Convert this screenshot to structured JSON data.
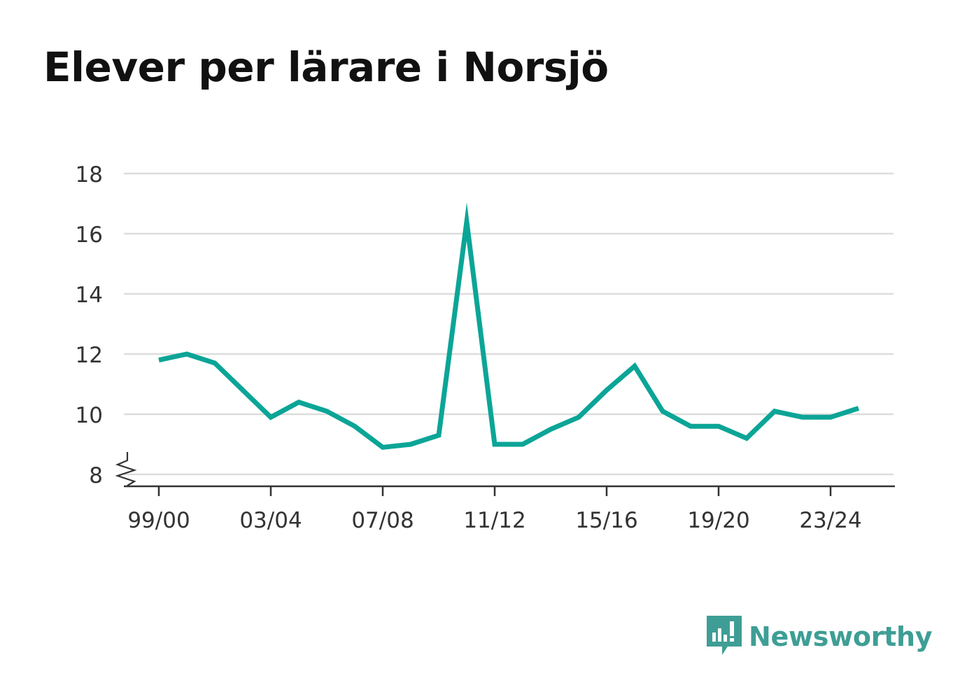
{
  "title": "Elever per lärare i Norsjö",
  "brand": {
    "name": "Newsworthy",
    "color": "#3e9e95",
    "icon": "bar-chart-speech-bubble-icon"
  },
  "colors": {
    "line": "#0ba597",
    "grid": "#dddddd",
    "axis": "#333333",
    "text": "#333333"
  },
  "chart_data": {
    "type": "line",
    "title": "Elever per lärare i Norsjö",
    "xlabel": "",
    "ylabel": "",
    "ylim": [
      8,
      18
    ],
    "yticks": [
      8,
      10,
      12,
      14,
      16,
      18
    ],
    "axis_break": true,
    "grid": true,
    "legend": "none",
    "x": [
      "99/00",
      "00/01",
      "01/02",
      "02/03",
      "03/04",
      "04/05",
      "05/06",
      "06/07",
      "07/08",
      "08/09",
      "09/10",
      "10/11",
      "11/12",
      "12/13",
      "13/14",
      "14/15",
      "15/16",
      "16/17",
      "17/18",
      "18/19",
      "19/20",
      "20/21",
      "21/22",
      "22/23",
      "23/24",
      "24/25"
    ],
    "xticks": [
      "99/00",
      "03/04",
      "07/08",
      "11/12",
      "15/16",
      "19/20",
      "23/24"
    ],
    "series": [
      {
        "values": [
          11.8,
          12.0,
          11.7,
          10.8,
          9.9,
          10.4,
          10.1,
          9.6,
          8.9,
          9.0,
          9.3,
          16.4,
          9.0,
          9.0,
          9.5,
          9.9,
          10.8,
          11.6,
          10.1,
          9.6,
          9.6,
          9.2,
          10.1,
          9.9,
          9.9,
          10.2
        ]
      }
    ]
  }
}
